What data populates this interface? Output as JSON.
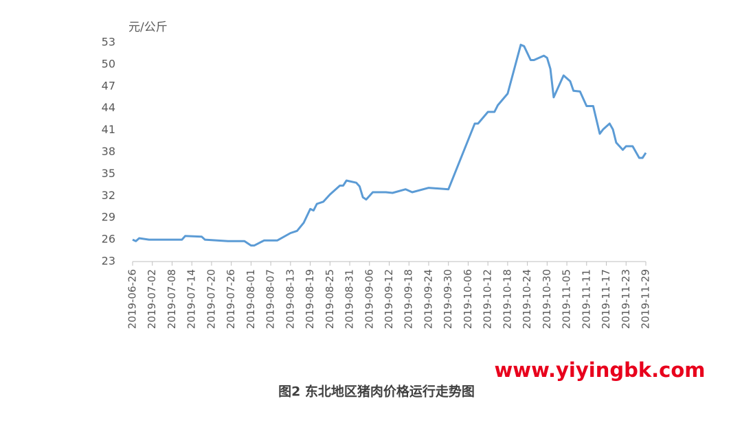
{
  "chart_data": {
    "type": "line",
    "y_label": "元/公斤",
    "caption": "图2 东北地区猪肉价格运行走势图",
    "watermark": "www.yiyingbk.com",
    "x": [
      "2019-06-26",
      "2019-06-27",
      "2019-06-28",
      "2019-07-01",
      "2019-07-11",
      "2019-07-12",
      "2019-07-17",
      "2019-07-18",
      "2019-07-25",
      "2019-07-30",
      "2019-08-01",
      "2019-08-02",
      "2019-08-05",
      "2019-08-09",
      "2019-08-13",
      "2019-08-15",
      "2019-08-17",
      "2019-08-19",
      "2019-08-20",
      "2019-08-21",
      "2019-08-23",
      "2019-08-25",
      "2019-08-28",
      "2019-08-29",
      "2019-08-30",
      "2019-09-02",
      "2019-09-03",
      "2019-09-04",
      "2019-09-05",
      "2019-09-07",
      "2019-09-11",
      "2019-09-13",
      "2019-09-17",
      "2019-09-19",
      "2019-09-24",
      "2019-09-30",
      "2019-10-08",
      "2019-10-09",
      "2019-10-12",
      "2019-10-14",
      "2019-10-15",
      "2019-10-18",
      "2019-10-22",
      "2019-10-23",
      "2019-10-25",
      "2019-10-26",
      "2019-10-29",
      "2019-10-30",
      "2019-10-31",
      "2019-11-01",
      "2019-11-04",
      "2019-11-06",
      "2019-11-07",
      "2019-11-09",
      "2019-11-11",
      "2019-11-13",
      "2019-11-15",
      "2019-11-16",
      "2019-11-18",
      "2019-11-19",
      "2019-11-20",
      "2019-11-22",
      "2019-11-23",
      "2019-11-25",
      "2019-11-27",
      "2019-11-28",
      "2019-11-29"
    ],
    "series": [
      {
        "color": "#5b9bd5",
        "values": [
          26.0,
          25.8,
          26.2,
          26.0,
          26.0,
          26.5,
          26.4,
          26.0,
          25.8,
          25.8,
          25.2,
          25.2,
          25.9,
          25.9,
          26.9,
          27.2,
          28.3,
          30.2,
          30.0,
          30.9,
          31.2,
          32.2,
          33.4,
          33.4,
          34.1,
          33.8,
          33.3,
          31.8,
          31.5,
          32.5,
          32.5,
          32.4,
          32.9,
          32.5,
          33.1,
          32.9,
          41.9,
          41.9,
          43.5,
          43.5,
          44.4,
          46.0,
          52.7,
          52.5,
          50.6,
          50.6,
          51.2,
          50.9,
          49.4,
          45.5,
          48.5,
          47.7,
          46.4,
          46.3,
          44.3,
          44.3,
          40.5,
          41.1,
          41.9,
          41.1,
          39.3,
          38.3,
          38.8,
          38.8,
          37.2,
          37.2,
          37.9
        ]
      }
    ],
    "xlim": [
      "2019-06-26",
      "2019-11-29"
    ],
    "xticks": [
      "2019-06-26",
      "2019-07-02",
      "2019-07-08",
      "2019-07-14",
      "2019-07-20",
      "2019-07-26",
      "2019-08-01",
      "2019-08-07",
      "2019-08-13",
      "2019-08-19",
      "2019-08-25",
      "2019-08-31",
      "2019-09-06",
      "2019-09-12",
      "2019-09-18",
      "2019-09-24",
      "2019-09-30",
      "2019-10-06",
      "2019-10-12",
      "2019-10-18",
      "2019-10-24",
      "2019-10-30",
      "2019-11-05",
      "2019-11-11",
      "2019-11-17",
      "2019-11-23",
      "2019-11-29"
    ],
    "ylim": [
      23,
      53
    ],
    "yticks": [
      23,
      26,
      29,
      32,
      35,
      38,
      41,
      44,
      47,
      50,
      53
    ],
    "grid": false
  }
}
